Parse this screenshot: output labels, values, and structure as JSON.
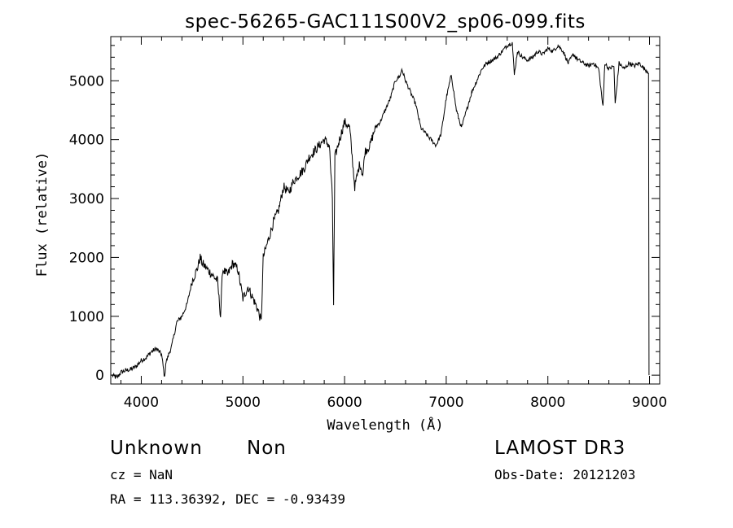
{
  "chart_data": {
    "type": "line",
    "title": "spec-56265-GAC111S00V2_sp06-099.fits",
    "xlabel": "Wavelength (Å)",
    "ylabel": "Flux (relative)",
    "xlim": [
      3700,
      9100
    ],
    "ylim": [
      -150,
      5750
    ],
    "x_ticks": [
      4000,
      5000,
      6000,
      7000,
      8000,
      9000
    ],
    "y_ticks": [
      0,
      1000,
      2000,
      3000,
      4000,
      5000
    ],
    "x_tick_labels": [
      "4000",
      "5000",
      "6000",
      "7000",
      "8000",
      "9000"
    ],
    "y_tick_labels": [
      "0",
      "1000",
      "2000",
      "3000",
      "4000",
      "5000"
    ],
    "grid": false,
    "series": [
      {
        "x": [
          3715,
          3760,
          3800,
          3850,
          3900,
          3950,
          4000,
          4050,
          4100,
          4150,
          4200,
          4230,
          4240,
          4260,
          4300,
          4350,
          4400,
          4450,
          4500,
          4550,
          4580,
          4600,
          4650,
          4700,
          4750,
          4780,
          4800,
          4850,
          4900,
          4950,
          5000,
          5050,
          5100,
          5150,
          5180,
          5200,
          5250,
          5300,
          5350,
          5400,
          5450,
          5500,
          5550,
          5600,
          5650,
          5700,
          5750,
          5800,
          5850,
          5880,
          5892,
          5905,
          5950,
          6000,
          6050,
          6100,
          6150,
          6180,
          6200,
          6250,
          6300,
          6350,
          6400,
          6450,
          6500,
          6550,
          6563,
          6600,
          6650,
          6700,
          6750,
          6800,
          6850,
          6900,
          6950,
          7000,
          7050,
          7100,
          7150,
          7200,
          7250,
          7300,
          7350,
          7400,
          7450,
          7500,
          7550,
          7600,
          7650,
          7670,
          7700,
          7750,
          7800,
          7850,
          7900,
          7950,
          8000,
          8050,
          8100,
          8150,
          8200,
          8250,
          8300,
          8350,
          8400,
          8450,
          8500,
          8542,
          8560,
          8600,
          8650,
          8662,
          8700,
          8750,
          8800,
          8850,
          8900,
          8950,
          8990,
          8995
        ],
        "y": [
          0,
          -50,
          50,
          80,
          100,
          150,
          250,
          300,
          400,
          450,
          350,
          -50,
          200,
          300,
          500,
          900,
          1000,
          1200,
          1600,
          1800,
          2000,
          1900,
          1800,
          1700,
          1600,
          1000,
          1800,
          1700,
          1900,
          1800,
          1300,
          1500,
          1300,
          1100,
          900,
          2000,
          2300,
          2600,
          2800,
          3200,
          3100,
          3300,
          3400,
          3500,
          3700,
          3800,
          3900,
          4000,
          3900,
          3000,
          1200,
          3700,
          4000,
          4300,
          4200,
          3200,
          3600,
          3400,
          3800,
          3900,
          4200,
          4300,
          4500,
          4700,
          5000,
          5100,
          5200,
          5000,
          4800,
          4600,
          4200,
          4100,
          4000,
          3900,
          4100,
          4700,
          5100,
          4500,
          4200,
          4500,
          4800,
          5000,
          5200,
          5300,
          5350,
          5400,
          5500,
          5600,
          5650,
          5100,
          5500,
          5400,
          5350,
          5400,
          5500,
          5450,
          5550,
          5500,
          5600,
          5500,
          5300,
          5450,
          5350,
          5300,
          5250,
          5300,
          5200,
          4550,
          5300,
          5200,
          5250,
          4600,
          5300,
          5200,
          5300,
          5250,
          5300,
          5200,
          5150,
          0
        ]
      }
    ]
  },
  "footer": {
    "object_class": "Unknown",
    "object_subclass": "Non",
    "cz_line": "cz = NaN",
    "coords_line": "RA = 113.36392, DEC =  -0.93439",
    "survey": "LAMOST DR3",
    "obs_date_line": "Obs-Date: 20121203"
  }
}
